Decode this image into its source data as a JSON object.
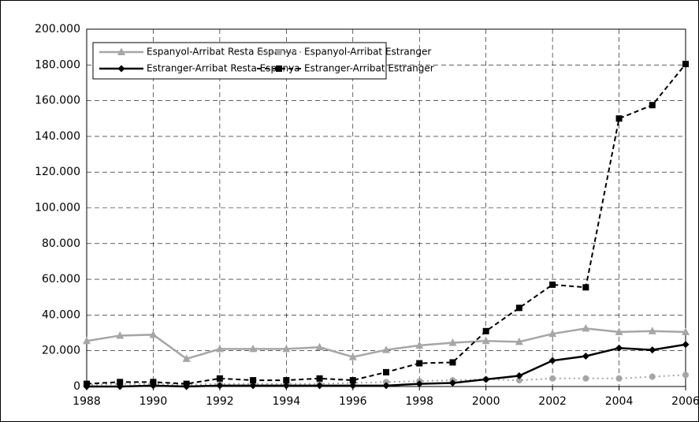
{
  "chart_data": {
    "type": "line",
    "x": [
      1988,
      1989,
      1990,
      1991,
      1992,
      1993,
      1994,
      1995,
      1996,
      1997,
      1998,
      1999,
      2000,
      2001,
      2002,
      2003,
      2004,
      2005,
      2006
    ],
    "series": [
      {
        "name": "Espanyol-Arribat Resta Espanya",
        "color": "#a6a6a6",
        "dash": "solid",
        "marker": "triangle",
        "values": [
          25500,
          28500,
          29000,
          15500,
          21000,
          21000,
          21000,
          22000,
          16500,
          20500,
          23000,
          24500,
          25500,
          25000,
          29500,
          32500,
          30500,
          31000,
          30500
        ]
      },
      {
        "name": "Espanyol-Arribat Estranger",
        "color": "#a6a6a6",
        "dash": "dotted",
        "marker": "circle",
        "values": [
          1000,
          1500,
          1500,
          1000,
          1500,
          1500,
          1500,
          1500,
          2000,
          2500,
          3000,
          3500,
          4000,
          3500,
          4500,
          4500,
          4500,
          5500,
          6500
        ]
      },
      {
        "name": "Estranger-Arribat Resta Espanya",
        "color": "#000000",
        "dash": "solid",
        "marker": "diamond",
        "values": [
          0,
          0,
          500,
          0,
          500,
          500,
          500,
          500,
          500,
          500,
          1500,
          2000,
          4000,
          6000,
          14500,
          17000,
          21500,
          20500,
          23500
        ]
      },
      {
        "name": "Estranger-Arribat Estranger",
        "color": "#000000",
        "dash": "dashed",
        "marker": "square",
        "values": [
          1500,
          2500,
          2500,
          1500,
          4500,
          3500,
          3500,
          4500,
          3500,
          8000,
          13000,
          13500,
          31000,
          44000,
          57000,
          55500,
          150000,
          157500,
          180500
        ]
      }
    ],
    "xlim": [
      1988,
      2006
    ],
    "xticks": [
      1988,
      1990,
      1992,
      1994,
      1996,
      1998,
      2000,
      2002,
      2004,
      2006
    ],
    "ylim": [
      0,
      200000
    ],
    "yticks": [
      0,
      {
        "value": 20000,
        "label": "20.000"
      },
      {
        "value": 40000,
        "label": "40.000"
      },
      {
        "value": 60000,
        "label": "60.000"
      },
      {
        "value": 80000,
        "label": "80.000"
      },
      {
        "value": 100000,
        "label": "100.000"
      },
      {
        "value": 120000,
        "label": "120.000"
      },
      {
        "value": 140000,
        "label": "140.000"
      },
      {
        "value": 160000,
        "label": "160.000"
      },
      {
        "value": 180000,
        "label": "180.000"
      },
      {
        "value": 200000,
        "label": "200.000"
      }
    ],
    "grid": true,
    "legend": "top-left"
  }
}
